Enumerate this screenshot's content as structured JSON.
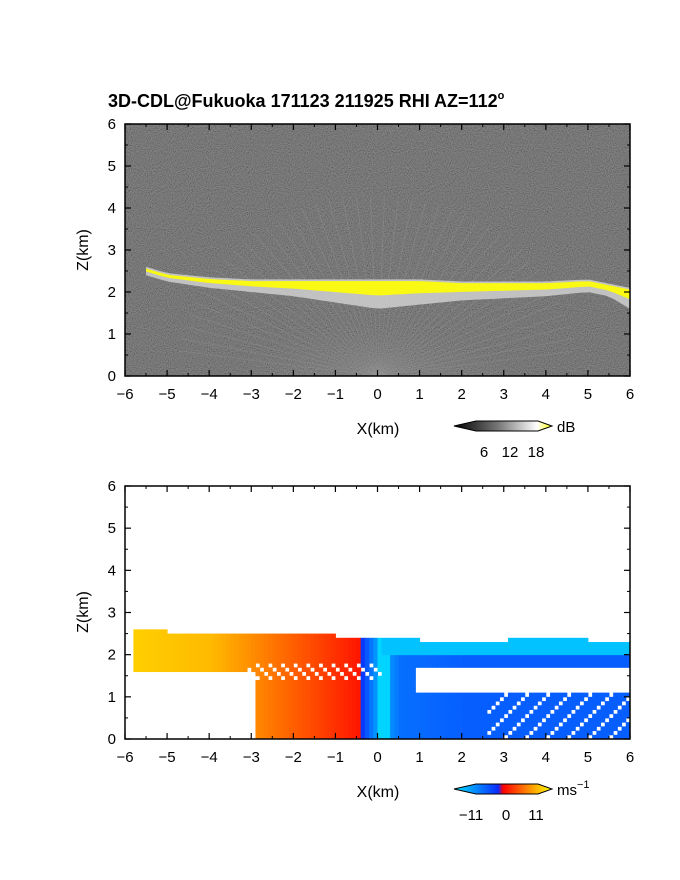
{
  "figure": {
    "title": "3D-CDL@Fukuoka 171123 211925 RHI AZ=112",
    "title_degree": "o"
  },
  "chart_data": [
    {
      "type": "heatmap",
      "name": "signal",
      "xlabel": "X(km)",
      "ylabel": "Z(km)",
      "xlim": [
        -6,
        6
      ],
      "ylim": [
        0,
        6
      ],
      "xticks": [
        -6,
        -5,
        -4,
        -3,
        -2,
        -1,
        0,
        1,
        2,
        3,
        4,
        5,
        6
      ],
      "yticks": [
        0,
        1,
        2,
        3,
        4,
        5,
        6
      ],
      "background": "noise",
      "layer_top_km": {
        "x": [
          -5.5,
          -5,
          -4,
          -3,
          -2,
          -1,
          0,
          1,
          2,
          3,
          4,
          5,
          5.5,
          6
        ],
        "z": [
          2.6,
          2.45,
          2.35,
          2.3,
          2.3,
          2.3,
          2.3,
          2.3,
          2.25,
          2.25,
          2.25,
          2.3,
          2.2,
          2.1
        ]
      },
      "layer_bottom_km": {
        "x": [
          -5.5,
          -5,
          -4,
          -3,
          -2,
          -1,
          0,
          1,
          2,
          3,
          4,
          5,
          5.5,
          6
        ],
        "z": [
          2.4,
          2.25,
          2.1,
          2.0,
          1.9,
          1.75,
          1.6,
          1.7,
          1.8,
          1.85,
          1.9,
          2.0,
          1.9,
          1.6
        ]
      },
      "colorbar": {
        "unit": "dB",
        "ticks": [
          6,
          12,
          18
        ],
        "colors": [
          "#000000",
          "#ffffff",
          "#ffff00"
        ]
      }
    },
    {
      "type": "heatmap",
      "name": "velocity",
      "xlabel": "X(km)",
      "ylabel": "Z(km)",
      "xlim": [
        -6,
        6
      ],
      "ylim": [
        0,
        6
      ],
      "xticks": [
        -6,
        -5,
        -4,
        -3,
        -2,
        -1,
        0,
        1,
        2,
        3,
        4,
        5,
        6
      ],
      "yticks": [
        0,
        1,
        2,
        3,
        4,
        5,
        6
      ],
      "layer_top_km": {
        "x": [
          -5.5,
          -5,
          -4,
          -3,
          -2,
          -1,
          0,
          1,
          2,
          3,
          4,
          5,
          6
        ],
        "z": [
          2.55,
          2.5,
          2.45,
          2.45,
          2.45,
          2.4,
          2.4,
          2.3,
          2.25,
          2.3,
          2.35,
          2.3,
          2.2
        ]
      },
      "velocity_ms": {
        "x": [
          -6,
          -4,
          -2,
          -0.5,
          0,
          0.5,
          2,
          4,
          6
        ],
        "v": [
          9,
          8,
          4,
          1,
          -8,
          -4,
          -3,
          -3,
          -3
        ]
      },
      "colorbar": {
        "unit": "ms",
        "unit_exponent": "−1",
        "ticks": [
          "−11",
          "0",
          "11"
        ],
        "colors": [
          "#00e5ff",
          "#0a2cff",
          "#ff0000",
          "#ffcc00",
          "#ffff00"
        ]
      }
    }
  ]
}
